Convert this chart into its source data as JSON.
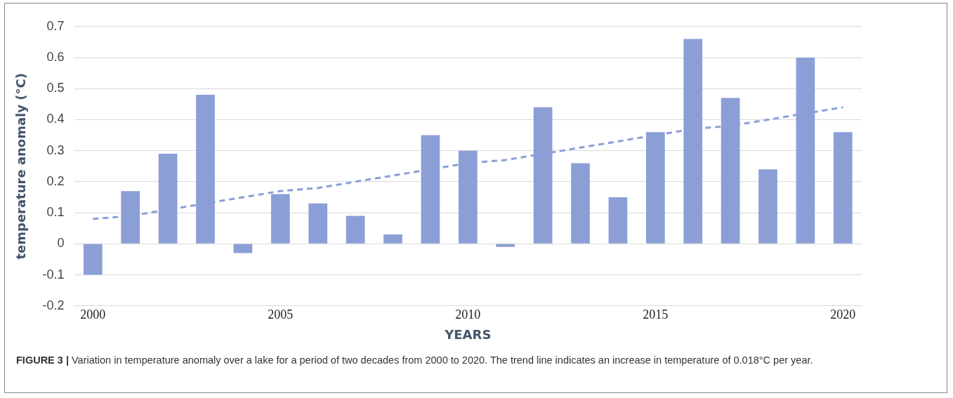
{
  "chart_data": {
    "type": "bar",
    "xlabel": "YEARS",
    "ylabel": "temperature anomaly (°C)",
    "categories": [
      "2000",
      null,
      null,
      null,
      null,
      "2005",
      null,
      null,
      null,
      null,
      "2010",
      null,
      null,
      null,
      null,
      "2015",
      null,
      null,
      null,
      null,
      "2020"
    ],
    "series": [
      {
        "color": "#8b9fd6",
        "values": [
          -0.1,
          0.17,
          0.29,
          0.48,
          -0.03,
          0.16,
          0.13,
          0.09,
          0.03,
          0.35,
          0.3,
          -0.01,
          0.44,
          0.26,
          0.15,
          0.36,
          0.66,
          0.47,
          0.24,
          0.6,
          0.36
        ]
      },
      {
        "type": "line",
        "color": "#8a9fd8",
        "line_style": "dashed",
        "values": [
          0.08,
          0.09,
          0.11,
          0.13,
          0.15,
          0.17,
          0.18,
          0.2,
          0.22,
          0.24,
          0.26,
          0.27,
          0.29,
          0.31,
          0.33,
          0.35,
          0.37,
          0.38,
          0.4,
          0.42,
          0.44
        ]
      }
    ],
    "ylim": [
      -0.2,
      0.7
    ],
    "yticks": [
      -0.2,
      -0.1,
      0,
      0.1,
      0.2,
      0.3,
      0.4,
      0.5,
      0.6,
      0.7
    ],
    "grid": "y",
    "legend": false,
    "annotations": [
      "FIGURE 3 | Variation in temperature anomaly over a lake for a period of two decades from 2000 to 2020. The trend line indicates an increase in temperature of 0.018°C per year."
    ]
  }
}
